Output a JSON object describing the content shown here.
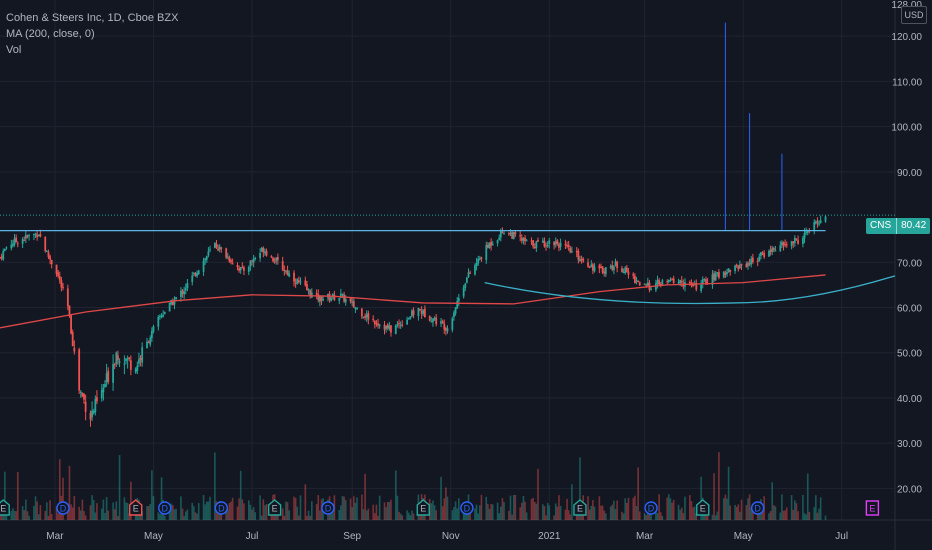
{
  "header": {
    "title": "Cohen & Steers Inc, 1D, Cboe BZX",
    "ma_label": "MA (200, close, 0)",
    "vol_label": "Vol"
  },
  "currency_label": "USD",
  "last_price": {
    "symbol": "CNS",
    "value": "80.42"
  },
  "colors": {
    "background": "#131722",
    "up": "#26a69a",
    "down": "#ef5350",
    "ma": "#e04848",
    "resistance": "#5ab4e6",
    "cup": "#3ab0c8",
    "earnings": "#ef5350",
    "earnings_future": "#e040fb",
    "dividend": "#2962ff"
  },
  "chart_data": {
    "type": "candlestick",
    "x_axis": {
      "start": "2020-01-27",
      "end": "2021-08-03",
      "ticks": [
        {
          "date": "2020-03-01",
          "label": "Mar"
        },
        {
          "date": "2020-05-01",
          "label": "May"
        },
        {
          "date": "2020-07-01",
          "label": "Jul"
        },
        {
          "date": "2020-09-01",
          "label": "Sep"
        },
        {
          "date": "2020-11-01",
          "label": "Nov"
        },
        {
          "date": "2021-01-01",
          "label": "2021"
        },
        {
          "date": "2021-03-01",
          "label": "Mar"
        },
        {
          "date": "2021-05-01",
          "label": "May"
        },
        {
          "date": "2021-07-01",
          "label": "Jul"
        }
      ]
    },
    "y_axis": {
      "range": [
        13,
        128
      ],
      "ticks": [
        20,
        30,
        40,
        50,
        60,
        70,
        90,
        100,
        110,
        120
      ],
      "tick_labels": [
        "20.00",
        "30.00",
        "40.00",
        "50.00",
        "60.00",
        "70.00",
        "90.00",
        "100.00",
        "110.00",
        "120.00"
      ],
      "top_label": "128.00"
    },
    "price_path": [
      {
        "d": "2020-01-27",
        "p": 71
      },
      {
        "d": "2020-02-01",
        "p": 74
      },
      {
        "d": "2020-02-20",
        "p": 76.5
      },
      {
        "d": "2020-02-25",
        "p": 72
      },
      {
        "d": "2020-03-02",
        "p": 68
      },
      {
        "d": "2020-03-09",
        "p": 60
      },
      {
        "d": "2020-03-16",
        "p": 42
      },
      {
        "d": "2020-03-23",
        "p": 36
      },
      {
        "d": "2020-03-30",
        "p": 41
      },
      {
        "d": "2020-04-08",
        "p": 50
      },
      {
        "d": "2020-04-20",
        "p": 47
      },
      {
        "d": "2020-05-05",
        "p": 58
      },
      {
        "d": "2020-05-20",
        "p": 64
      },
      {
        "d": "2020-06-08",
        "p": 74
      },
      {
        "d": "2020-06-25",
        "p": 68
      },
      {
        "d": "2020-07-08",
        "p": 73
      },
      {
        "d": "2020-07-25",
        "p": 67
      },
      {
        "d": "2020-08-10",
        "p": 62
      },
      {
        "d": "2020-08-25",
        "p": 62.5
      },
      {
        "d": "2020-09-10",
        "p": 58
      },
      {
        "d": "2020-09-25",
        "p": 55
      },
      {
        "d": "2020-10-12",
        "p": 59.5
      },
      {
        "d": "2020-10-30",
        "p": 55.5
      },
      {
        "d": "2020-11-10",
        "p": 66
      },
      {
        "d": "2020-11-25",
        "p": 74
      },
      {
        "d": "2020-12-04",
        "p": 77
      },
      {
        "d": "2020-12-20",
        "p": 74
      },
      {
        "d": "2021-01-05",
        "p": 74.5
      },
      {
        "d": "2021-01-20",
        "p": 71
      },
      {
        "d": "2021-02-01",
        "p": 68
      },
      {
        "d": "2021-02-12",
        "p": 69.5
      },
      {
        "d": "2021-03-01",
        "p": 64.5
      },
      {
        "d": "2021-03-20",
        "p": 66
      },
      {
        "d": "2021-04-01",
        "p": 64.5
      },
      {
        "d": "2021-04-20",
        "p": 68
      },
      {
        "d": "2021-05-05",
        "p": 70
      },
      {
        "d": "2021-05-20",
        "p": 73
      },
      {
        "d": "2021-06-05",
        "p": 75
      },
      {
        "d": "2021-06-15",
        "p": 78.5
      },
      {
        "d": "2021-06-21",
        "p": 80.42
      }
    ],
    "ma200_path": [
      {
        "d": "2020-01-27",
        "p": 55.5
      },
      {
        "d": "2020-03-20",
        "p": 59
      },
      {
        "d": "2020-05-15",
        "p": 61.5
      },
      {
        "d": "2020-07-01",
        "p": 62.8
      },
      {
        "d": "2020-08-20",
        "p": 62.5
      },
      {
        "d": "2020-10-15",
        "p": 61
      },
      {
        "d": "2020-12-10",
        "p": 60.8
      },
      {
        "d": "2021-02-01",
        "p": 63.5
      },
      {
        "d": "2021-03-15",
        "p": 65
      },
      {
        "d": "2021-05-01",
        "p": 65.5
      },
      {
        "d": "2021-06-21",
        "p": 67.2
      }
    ],
    "resistance_level": 77,
    "current_price": 80.42,
    "cup_curve": {
      "start": {
        "d": "2020-11-22",
        "p": 65.5
      },
      "bottom": {
        "d": "2021-04-25",
        "p": 61
      },
      "end": {
        "d": "2021-08-03",
        "p": 67
      }
    },
    "volume_spikes": [
      {
        "d": "2021-04-20",
        "top": 123
      },
      {
        "d": "2021-05-05",
        "top": 103
      },
      {
        "d": "2021-05-25",
        "top": 94
      }
    ],
    "events": [
      {
        "d": "2020-01-29",
        "type": "earnings",
        "label": "E"
      },
      {
        "d": "2020-03-06",
        "type": "dividend",
        "label": "D"
      },
      {
        "d": "2020-04-20",
        "type": "earnings",
        "label": "E"
      },
      {
        "d": "2020-05-08",
        "type": "dividend",
        "label": "D"
      },
      {
        "d": "2020-06-12",
        "type": "dividend",
        "label": "D"
      },
      {
        "d": "2020-07-15",
        "type": "earnings",
        "label": "E"
      },
      {
        "d": "2020-08-17",
        "type": "dividend",
        "label": "D"
      },
      {
        "d": "2020-10-15",
        "type": "earnings",
        "label": "E"
      },
      {
        "d": "2020-11-11",
        "type": "dividend",
        "label": "D"
      },
      {
        "d": "2021-01-20",
        "type": "earnings",
        "label": "E"
      },
      {
        "d": "2021-03-05",
        "type": "dividend",
        "label": "D"
      },
      {
        "d": "2021-04-06",
        "type": "earnings",
        "label": "E"
      },
      {
        "d": "2021-05-10",
        "type": "dividend",
        "label": "D"
      },
      {
        "d": "2021-07-20",
        "type": "earnings_future",
        "label": "E"
      }
    ]
  }
}
